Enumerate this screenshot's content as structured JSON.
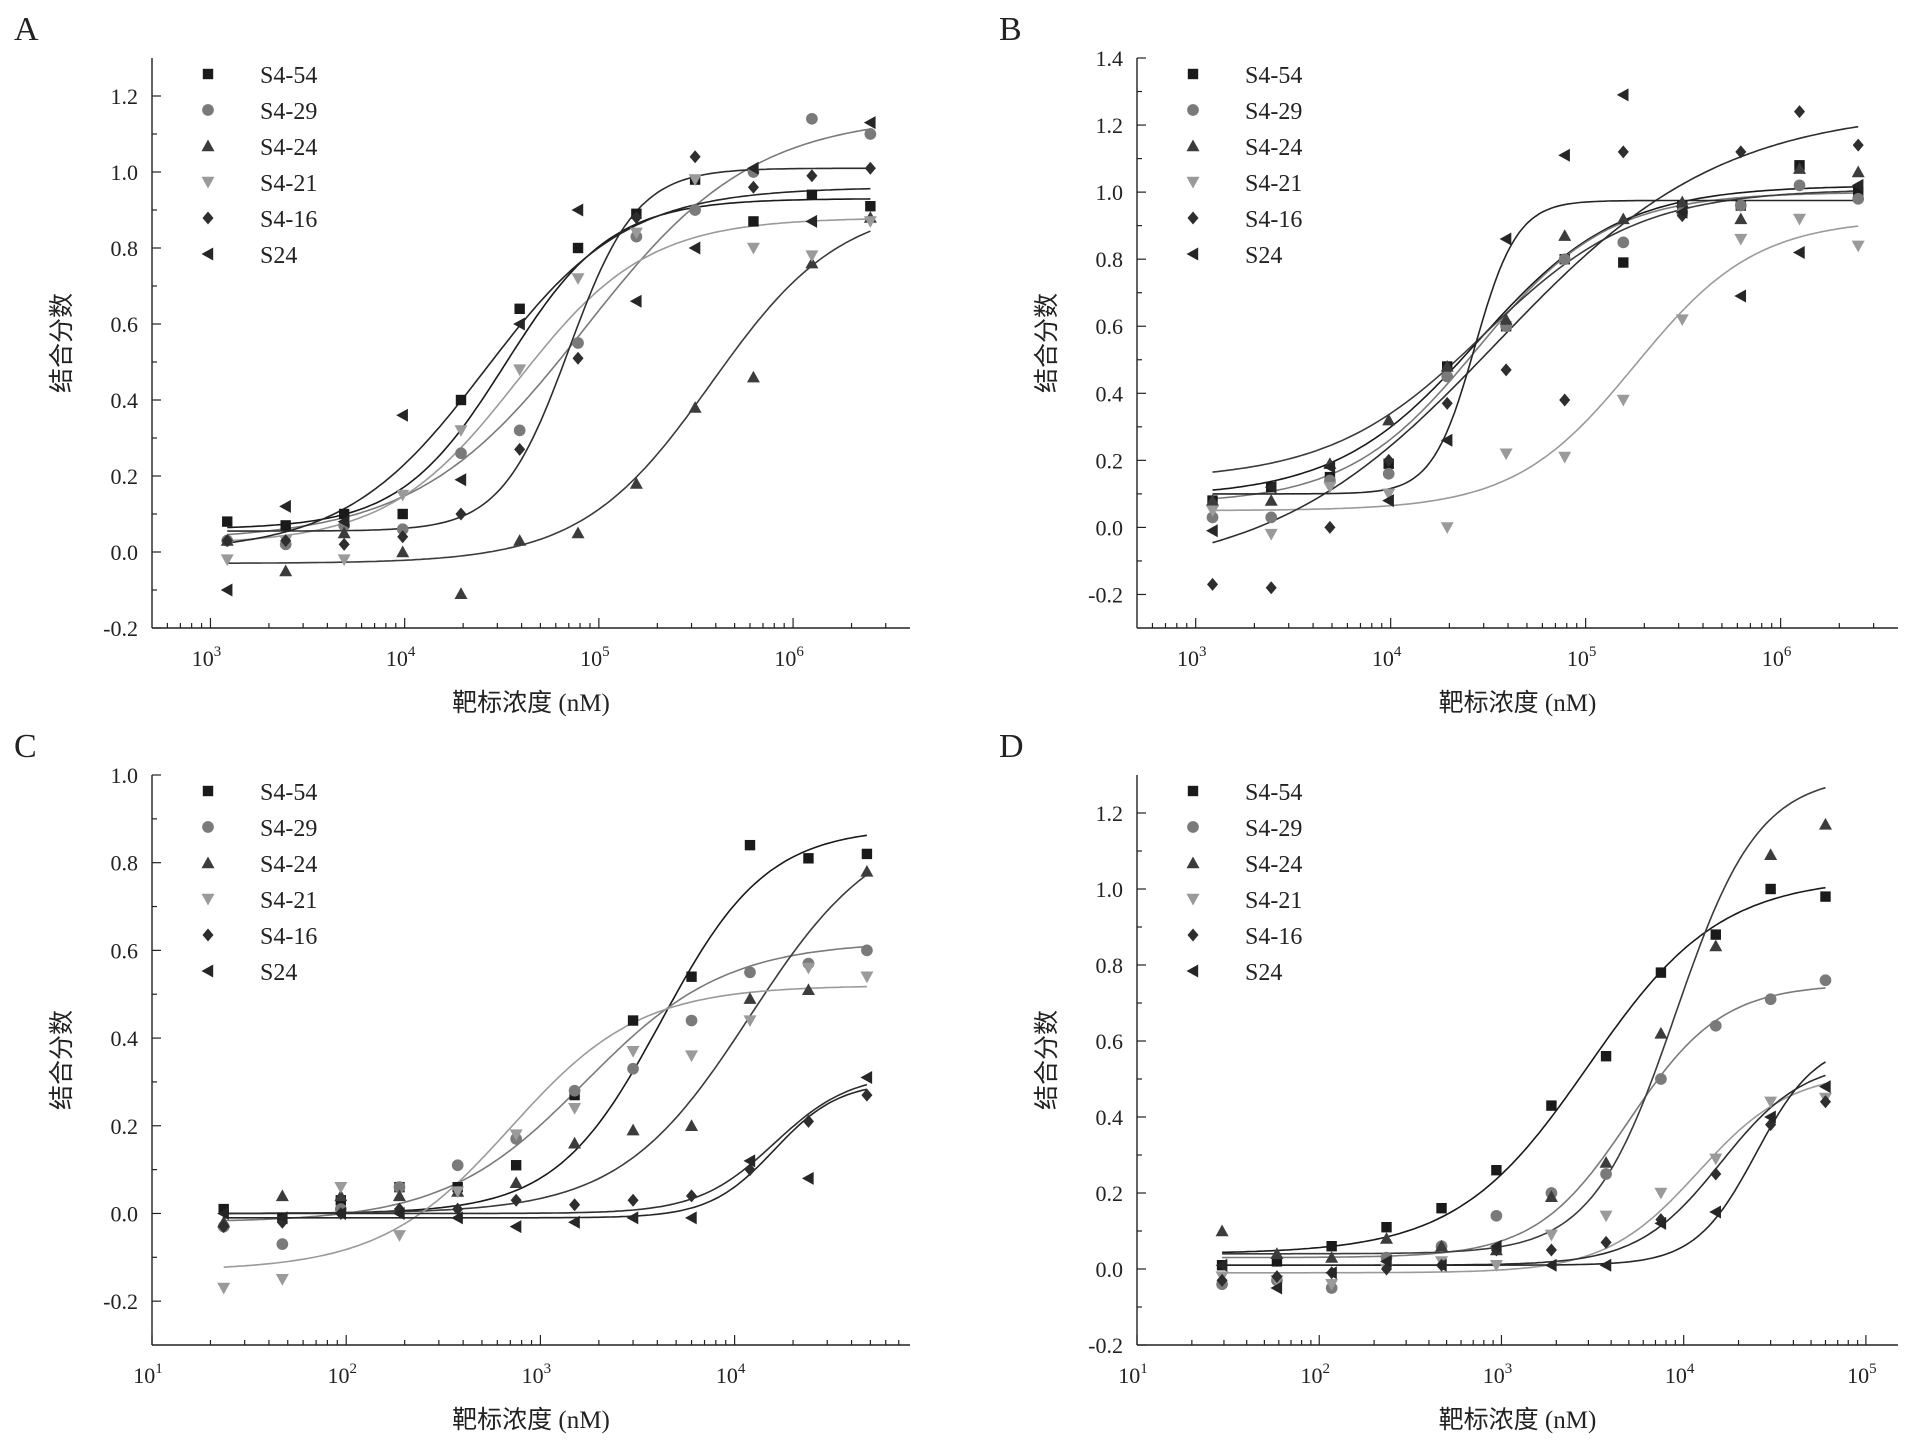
{
  "series_names": [
    "S4-54",
    "S4-29",
    "S4-24",
    "S4-21",
    "S4-16",
    "S24"
  ],
  "series_colors": [
    "#1a1a1a",
    "#7a7a7a",
    "#3c3c3c",
    "#9a9a9a",
    "#2e2e2e",
    "#262626"
  ],
  "series_markers": [
    "square",
    "circle",
    "triangle-up",
    "triangle-down",
    "diamond",
    "triangle-left"
  ],
  "chart_data": [
    {
      "type": "scatter",
      "panel": "A",
      "xlabel": "靶标浓度 (nM)",
      "ylabel": "结合分数",
      "xscale": "log",
      "xlim": [
        500,
        4000000
      ],
      "ylim": [
        -0.2,
        1.3
      ],
      "xticks": [
        1000,
        10000,
        100000,
        1000000
      ],
      "xtick_labels": [
        [
          "10",
          "3"
        ],
        [
          "10",
          "4"
        ],
        [
          "10",
          "5"
        ],
        [
          "10",
          "6"
        ]
      ],
      "yticks": [
        -0.2,
        0.0,
        0.2,
        0.4,
        0.6,
        0.8,
        1.0,
        1.2
      ],
      "ytick_labels": [
        "-0.2",
        "0.0",
        "0.2",
        "0.4",
        "0.6",
        "0.8",
        "1.0",
        "1.2"
      ],
      "legend_position": "top-left",
      "x": [
        1220,
        2440,
        4880,
        9770,
        19500,
        39100,
        78100,
        156000,
        313000,
        625000,
        1250000,
        2500000
      ],
      "series": [
        {
          "name": "S4-54",
          "y": [
            0.08,
            0.07,
            0.1,
            0.1,
            0.4,
            0.64,
            0.8,
            0.89,
            0.98,
            0.87,
            0.94,
            0.91
          ],
          "fit": {
            "bottom": 0.06,
            "top": 0.93,
            "ec50": 33000,
            "hill": 1.6
          }
        },
        {
          "name": "S4-29",
          "y": [
            0.03,
            0.02,
            0.07,
            0.06,
            0.26,
            0.32,
            0.55,
            0.83,
            0.9,
            1.0,
            1.14,
            1.1
          ],
          "fit": {
            "bottom": 0.03,
            "top": 1.15,
            "ec50": 85000,
            "hill": 1.0
          }
        },
        {
          "name": "S4-24",
          "y": [
            0.03,
            -0.05,
            0.05,
            0.0,
            -0.11,
            0.03,
            0.05,
            0.18,
            0.38,
            0.46,
            0.76,
            0.88
          ],
          "fit": {
            "bottom": -0.03,
            "top": 0.92,
            "ec50": 380000,
            "hill": 1.3
          }
        },
        {
          "name": "S4-21",
          "y": [
            -0.02,
            0.03,
            -0.02,
            0.15,
            0.32,
            0.48,
            0.72,
            0.84,
            0.98,
            0.8,
            0.78,
            0.87
          ],
          "fit": {
            "bottom": 0.02,
            "top": 0.88,
            "ec50": 38000,
            "hill": 1.3
          }
        },
        {
          "name": "S4-16",
          "y": [
            0.03,
            0.03,
            0.02,
            0.04,
            0.1,
            0.27,
            0.51,
            0.88,
            1.04,
            0.96,
            0.99,
            1.01
          ],
          "fit": {
            "bottom": 0.055,
            "top": 1.01,
            "ec50": 70000,
            "hill": 2.5
          }
        },
        {
          "name": "S24",
          "y": [
            -0.1,
            0.12,
            0.08,
            0.36,
            0.19,
            0.6,
            0.9,
            0.66,
            0.8,
            1.01,
            0.87,
            1.13
          ],
          "fit": {
            "bottom": 0.0,
            "top": 0.96,
            "ec50": 26000,
            "hill": 1.2
          }
        }
      ]
    },
    {
      "type": "scatter",
      "panel": "B",
      "xlabel": "靶标浓度 (nM)",
      "ylabel": "结合分数",
      "xscale": "log",
      "xlim": [
        500,
        4000000
      ],
      "ylim": [
        -0.3,
        1.4
      ],
      "xticks": [
        1000,
        10000,
        100000,
        1000000
      ],
      "xtick_labels": [
        [
          "10",
          "3"
        ],
        [
          "10",
          "4"
        ],
        [
          "10",
          "5"
        ],
        [
          "10",
          "6"
        ]
      ],
      "yticks": [
        -0.2,
        0.0,
        0.2,
        0.4,
        0.6,
        0.8,
        1.0,
        1.2,
        1.4
      ],
      "ytick_labels": [
        "-0.2",
        "0.0",
        "0.2",
        "0.4",
        "0.6",
        "0.8",
        "1.0",
        "1.2",
        "1.4"
      ],
      "legend_position": "top-left",
      "x": [
        1220,
        2440,
        4880,
        9770,
        19500,
        39100,
        78100,
        156000,
        313000,
        625000,
        1250000,
        2500000
      ],
      "series": [
        {
          "name": "S4-54",
          "y": [
            0.08,
            0.12,
            0.15,
            0.19,
            0.48,
            0.6,
            0.8,
            0.79,
            0.96,
            0.96,
            1.08,
            1.0
          ],
          "fit": {
            "bottom": 0.09,
            "top": 1.02,
            "ec50": 28000,
            "hill": 1.2
          }
        },
        {
          "name": "S4-29",
          "y": [
            0.03,
            0.03,
            0.14,
            0.16,
            0.45,
            0.6,
            0.8,
            0.85,
            0.94,
            0.96,
            1.02,
            0.98
          ],
          "fit": {
            "bottom": 0.07,
            "top": 1.0,
            "ec50": 28000,
            "hill": 1.3
          }
        },
        {
          "name": "S4-24",
          "y": [
            0.08,
            0.08,
            0.19,
            0.32,
            0.48,
            0.62,
            0.87,
            0.92,
            0.97,
            0.92,
            1.07,
            1.06
          ],
          "fit": {
            "bottom": 0.14,
            "top": 1.01,
            "ec50": 30000,
            "hill": 1.1
          }
        },
        {
          "name": "S4-21",
          "y": [
            0.05,
            -0.02,
            0.12,
            0.1,
            0.0,
            0.22,
            0.21,
            0.38,
            0.62,
            0.86,
            0.92,
            0.84
          ],
          "fit": {
            "bottom": 0.05,
            "top": 0.92,
            "ec50": 180000,
            "hill": 1.4
          }
        },
        {
          "name": "S4-16",
          "y": [
            -0.17,
            -0.18,
            0.0,
            0.2,
            0.37,
            0.47,
            0.38,
            1.12,
            0.93,
            1.12,
            1.24,
            1.14
          ],
          "fit": {
            "bottom": -0.15,
            "top": 1.25,
            "ec50": 35000,
            "hill": 0.75
          }
        },
        {
          "name": "S24",
          "y": [
            -0.01,
            0.12,
            0.18,
            0.08,
            0.26,
            0.86,
            1.11,
            1.29,
            0.94,
            0.69,
            0.82,
            1.02
          ],
          "fit": {
            "bottom": 0.1,
            "top": 0.975,
            "ec50": 27000,
            "hill": 4.0
          }
        }
      ]
    },
    {
      "type": "scatter",
      "panel": "C",
      "xlabel": "靶标浓度 (nM)",
      "ylabel": "结合分数",
      "xscale": "log",
      "xlim": [
        10,
        80000
      ],
      "ylim": [
        -0.3,
        1.0
      ],
      "xticks": [
        10,
        100,
        1000,
        10000
      ],
      "xtick_labels": [
        [
          "10",
          "1"
        ],
        [
          "10",
          "2"
        ],
        [
          "10",
          "3"
        ],
        [
          "10",
          "4"
        ]
      ],
      "yticks": [
        -0.2,
        0.0,
        0.2,
        0.4,
        0.6,
        0.8,
        1.0
      ],
      "ytick_labels": [
        "-0.2",
        "0.0",
        "0.2",
        "0.4",
        "0.6",
        "0.8",
        "1.0"
      ],
      "legend_position": "top-left",
      "x": [
        23.4,
        46.9,
        93.8,
        188,
        375,
        750,
        1500,
        3000,
        6000,
        12000,
        24000,
        48000
      ],
      "series": [
        {
          "name": "S4-54",
          "y": [
            0.01,
            -0.01,
            0.03,
            0.06,
            0.06,
            0.11,
            0.27,
            0.44,
            0.54,
            0.84,
            0.81,
            0.82
          ],
          "fit": {
            "bottom": 0.0,
            "top": 0.88,
            "ec50": 4200,
            "hill": 1.6
          }
        },
        {
          "name": "S4-29",
          "y": [
            -0.03,
            -0.07,
            0.01,
            0.06,
            0.11,
            0.17,
            0.28,
            0.33,
            0.44,
            0.55,
            0.57,
            0.6
          ],
          "fit": {
            "bottom": -0.02,
            "top": 0.62,
            "ec50": 1700,
            "hill": 1.2
          }
        },
        {
          "name": "S4-24",
          "y": [
            -0.02,
            0.04,
            0.04,
            0.04,
            0.05,
            0.07,
            0.16,
            0.19,
            0.2,
            0.49,
            0.51,
            0.78
          ],
          "fit": {
            "bottom": 0.0,
            "top": 0.9,
            "ec50": 12000,
            "hill": 1.3
          }
        },
        {
          "name": "S4-21",
          "y": [
            -0.17,
            -0.15,
            0.06,
            -0.05,
            0.05,
            0.18,
            0.24,
            0.37,
            0.36,
            0.44,
            0.56,
            0.54
          ],
          "fit": {
            "bottom": -0.13,
            "top": 0.52,
            "ec50": 700,
            "hill": 1.3
          }
        },
        {
          "name": "S4-16",
          "y": [
            -0.03,
            -0.02,
            0.0,
            0.01,
            0.01,
            0.03,
            0.02,
            0.03,
            0.04,
            0.1,
            0.21,
            0.27
          ],
          "fit": {
            "bottom": 0.0,
            "top": 0.32,
            "ec50": 16000,
            "hill": 2.2
          }
        },
        {
          "name": "S24",
          "y": [
            0.0,
            -0.01,
            0.0,
            0.0,
            -0.01,
            -0.03,
            -0.02,
            -0.01,
            -0.01,
            0.12,
            0.08,
            0.31
          ],
          "fit": {
            "bottom": -0.01,
            "top": 0.3,
            "ec50": 16000,
            "hill": 2.6
          }
        }
      ]
    },
    {
      "type": "scatter",
      "panel": "D",
      "xlabel": "靶标浓度 (nM)",
      "ylabel": "结合分数",
      "xscale": "log",
      "xlim": [
        10,
        150000
      ],
      "ylim": [
        -0.2,
        1.3
      ],
      "xticks": [
        10,
        100,
        1000,
        10000,
        100000
      ],
      "xtick_labels": [
        [
          "10",
          "1"
        ],
        [
          "10",
          "2"
        ],
        [
          "10",
          "3"
        ],
        [
          "10",
          "4"
        ],
        [
          "10",
          "5"
        ]
      ],
      "yticks": [
        -0.2,
        0.0,
        0.2,
        0.4,
        0.6,
        0.8,
        1.0,
        1.2
      ],
      "ytick_labels": [
        "-0.2",
        "0.0",
        "0.2",
        "0.4",
        "0.6",
        "0.8",
        "1.0",
        "1.2"
      ],
      "legend_position": "top-left",
      "x": [
        29.3,
        58.6,
        117,
        234,
        469,
        938,
        1880,
        3750,
        7500,
        15000,
        30000,
        60000
      ],
      "series": [
        {
          "name": "S4-54",
          "y": [
            0.01,
            0.02,
            0.06,
            0.11,
            0.16,
            0.26,
            0.43,
            0.56,
            0.78,
            0.88,
            1.0,
            0.98
          ],
          "fit": {
            "bottom": 0.04,
            "top": 1.03,
            "ec50": 3000,
            "hill": 1.2
          }
        },
        {
          "name": "S4-29",
          "y": [
            -0.04,
            -0.03,
            -0.05,
            0.03,
            0.06,
            0.14,
            0.2,
            0.25,
            0.5,
            0.64,
            0.71,
            0.76
          ],
          "fit": {
            "bottom": 0.03,
            "top": 0.75,
            "ec50": 5000,
            "hill": 1.7
          }
        },
        {
          "name": "S4-24",
          "y": [
            0.1,
            0.04,
            0.03,
            0.08,
            0.06,
            0.05,
            0.19,
            0.28,
            0.62,
            0.85,
            1.09,
            1.17
          ],
          "fit": {
            "bottom": 0.04,
            "top": 1.3,
            "ec50": 9000,
            "hill": 1.9
          }
        },
        {
          "name": "S4-21",
          "y": [
            -0.02,
            -0.03,
            -0.04,
            0.0,
            0.02,
            0.01,
            0.09,
            0.14,
            0.2,
            0.29,
            0.44,
            0.45
          ],
          "fit": {
            "bottom": -0.01,
            "top": 0.52,
            "ec50": 12000,
            "hill": 1.7
          }
        },
        {
          "name": "S4-16",
          "y": [
            -0.03,
            -0.02,
            -0.01,
            0.0,
            0.01,
            0.05,
            0.05,
            0.07,
            0.13,
            0.25,
            0.38,
            0.44
          ],
          "fit": {
            "bottom": 0.01,
            "top": 0.55,
            "ec50": 16000,
            "hill": 1.9
          }
        },
        {
          "name": "S24",
          "y": [
            0.01,
            -0.05,
            -0.01,
            0.02,
            0.01,
            0.06,
            0.01,
            0.01,
            0.12,
            0.15,
            0.4,
            0.48
          ],
          "fit": {
            "bottom": 0.01,
            "top": 0.6,
            "ec50": 25000,
            "hill": 2.6
          }
        }
      ]
    }
  ]
}
